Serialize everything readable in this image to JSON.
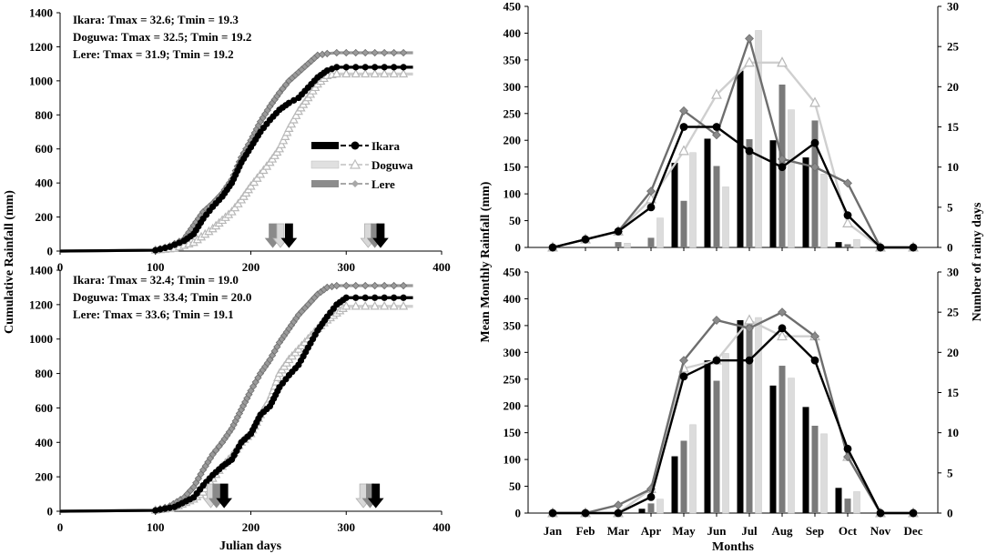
{
  "colors": {
    "ikara": "#000000",
    "doguwa": "#d0d0d0",
    "lere": "#808080",
    "axis": "#000000"
  },
  "icons": {
    "arrow": "down-arrow-icon"
  },
  "chart_data": [
    {
      "type": "line",
      "panel": "cumulative-top",
      "xlim": [
        0,
        400
      ],
      "ylim": [
        0,
        1400
      ],
      "xticks": [
        "0",
        "100",
        "200",
        "300",
        "400"
      ],
      "yticks": [
        "0",
        "200",
        "400",
        "600",
        "800",
        "1000",
        "1200",
        "1400"
      ],
      "xlabel": "",
      "ylabel": "",
      "annotations": [
        "Ikara: Tmax = 32.6; Tmin = 19.3",
        "Doguwa: Tmax = 32.5; Tmin = 19.2",
        "Lere: Tmax = 31.9; Tmin = 19.2"
      ],
      "legend": [
        "Ikara",
        "Doguwa",
        "Lere"
      ],
      "series": [
        {
          "name": "Ikara",
          "x": [
            0,
            100,
            115,
            130,
            140,
            150,
            160,
            170,
            180,
            190,
            200,
            210,
            220,
            230,
            240,
            250,
            260,
            270,
            280,
            290,
            300,
            320,
            340,
            370
          ],
          "y": [
            0,
            5,
            25,
            60,
            100,
            190,
            260,
            320,
            400,
            520,
            610,
            700,
            770,
            830,
            870,
            900,
            960,
            1020,
            1060,
            1080,
            1080,
            1080,
            1080,
            1080
          ]
        },
        {
          "name": "Doguwa",
          "x": [
            0,
            100,
            120,
            140,
            160,
            170,
            180,
            190,
            200,
            210,
            220,
            230,
            240,
            250,
            260,
            270,
            280,
            290,
            300,
            320,
            340,
            370
          ],
          "y": [
            0,
            5,
            15,
            50,
            130,
            180,
            230,
            300,
            380,
            450,
            520,
            600,
            720,
            820,
            900,
            980,
            1030,
            1040,
            1040,
            1040,
            1040,
            1040
          ]
        },
        {
          "name": "Lere",
          "x": [
            0,
            100,
            115,
            130,
            140,
            150,
            160,
            170,
            180,
            190,
            200,
            210,
            220,
            230,
            240,
            250,
            260,
            270,
            280,
            290,
            300,
            320,
            340,
            370
          ],
          "y": [
            0,
            5,
            30,
            70,
            150,
            230,
            280,
            340,
            420,
            550,
            650,
            760,
            850,
            930,
            1000,
            1050,
            1100,
            1150,
            1160,
            1165,
            1165,
            1165,
            1165,
            1165
          ]
        }
      ],
      "arrows": [
        {
          "name": "Lere",
          "x": 223
        },
        {
          "name": "Doguwa",
          "x": 231
        },
        {
          "name": "Ikara",
          "x": 240
        },
        {
          "name": "Doguwa",
          "x": 323
        },
        {
          "name": "Lere",
          "x": 330
        },
        {
          "name": "Ikara",
          "x": 336
        }
      ]
    },
    {
      "type": "line",
      "panel": "cumulative-bottom",
      "xlim": [
        0,
        400
      ],
      "ylim": [
        0,
        1400
      ],
      "xticks": [
        "0",
        "100",
        "200",
        "300",
        "400"
      ],
      "yticks": [
        "0",
        "200",
        "400",
        "600",
        "800",
        "1000",
        "1200",
        "1400"
      ],
      "xlabel": "Julian days",
      "ylabel": "Cumulative Rainfall (mm)",
      "annotations": [
        "Ikara: Tmax = 32.4; Tmin = 19.0",
        "Doguwa: Tmax = 33.4; Tmin = 20.0",
        "Lere: Tmax = 33.6; Tmin = 19.1"
      ],
      "series": [
        {
          "name": "Ikara",
          "x": [
            0,
            100,
            120,
            140,
            150,
            160,
            170,
            180,
            190,
            200,
            210,
            220,
            230,
            240,
            250,
            260,
            270,
            280,
            290,
            300,
            320,
            340,
            370
          ],
          "y": [
            0,
            5,
            25,
            80,
            150,
            210,
            260,
            300,
            400,
            450,
            560,
            610,
            720,
            790,
            850,
            950,
            1050,
            1130,
            1200,
            1240,
            1240,
            1240,
            1240
          ]
        },
        {
          "name": "Doguwa",
          "x": [
            0,
            100,
            120,
            140,
            150,
            160,
            170,
            180,
            190,
            200,
            210,
            220,
            230,
            240,
            250,
            260,
            270,
            280,
            290,
            300,
            320,
            340,
            370
          ],
          "y": [
            0,
            5,
            20,
            70,
            110,
            190,
            260,
            320,
            400,
            450,
            560,
            650,
            800,
            880,
            940,
            1000,
            1060,
            1110,
            1150,
            1190,
            1190,
            1190,
            1190
          ]
        },
        {
          "name": "Lere",
          "x": [
            0,
            100,
            115,
            130,
            140,
            150,
            160,
            170,
            180,
            190,
            200,
            210,
            220,
            230,
            240,
            250,
            260,
            270,
            280,
            290,
            300,
            320,
            340,
            370
          ],
          "y": [
            0,
            5,
            30,
            80,
            140,
            240,
            330,
            400,
            480,
            590,
            700,
            800,
            880,
            980,
            1060,
            1140,
            1200,
            1260,
            1300,
            1310,
            1310,
            1310,
            1310,
            1310
          ]
        }
      ],
      "arrows": [
        {
          "name": "Doguwa",
          "x": 158
        },
        {
          "name": "Lere",
          "x": 164
        },
        {
          "name": "Ikara",
          "x": 172
        },
        {
          "name": "Doguwa",
          "x": 318
        },
        {
          "name": "Lere",
          "x": 325
        },
        {
          "name": "Ikara",
          "x": 331
        }
      ]
    },
    {
      "type": "bar",
      "panel": "monthly-top",
      "categories": [
        "Jan",
        "Feb",
        "Mar",
        "Apr",
        "May",
        "Jun",
        "Jul",
        "Aug",
        "Sep",
        "Oct",
        "Nov",
        "Dec"
      ],
      "ylim": [
        0,
        450
      ],
      "y2lim": [
        0,
        30
      ],
      "yticks": [
        "0",
        "50",
        "100",
        "150",
        "200",
        "250",
        "300",
        "350",
        "400",
        "450"
      ],
      "y2ticks": [
        "0",
        "5",
        "10",
        "15",
        "20",
        "25",
        "30"
      ],
      "xlabel": "",
      "ylabel": "",
      "y2label": "",
      "series": [
        {
          "name": "Ikara",
          "values": [
            0,
            0,
            0,
            0,
            158,
            203,
            330,
            200,
            168,
            10,
            0,
            0
          ]
        },
        {
          "name": "Lere",
          "values": [
            0,
            0,
            10,
            18,
            87,
            152,
            202,
            304,
            237,
            6,
            0,
            0
          ]
        },
        {
          "name": "Doguwa",
          "values": [
            0,
            0,
            8,
            55,
            177,
            113,
            405,
            257,
            137,
            15,
            0,
            0
          ]
        }
      ],
      "rainy_days": [
        {
          "name": "Ikara",
          "values": [
            0,
            1,
            2,
            5,
            15,
            15,
            12,
            10,
            13,
            4,
            0,
            0
          ]
        },
        {
          "name": "Doguwa",
          "values": [
            0,
            1,
            2,
            6,
            12,
            19,
            23,
            23,
            18,
            3,
            0,
            0
          ]
        },
        {
          "name": "Lere",
          "values": [
            0,
            1,
            2,
            7,
            17,
            14,
            26,
            11,
            10,
            8,
            0,
            0
          ]
        }
      ]
    },
    {
      "type": "bar",
      "panel": "monthly-bottom",
      "categories": [
        "Jan",
        "Feb",
        "Mar",
        "Apr",
        "May",
        "Jun",
        "Jul",
        "Aug",
        "Sep",
        "Oct",
        "Nov",
        "Dec"
      ],
      "ylim": [
        0,
        450
      ],
      "y2lim": [
        0,
        30
      ],
      "yticks": [
        "0",
        "50",
        "100",
        "150",
        "200",
        "250",
        "300",
        "350",
        "400",
        "450"
      ],
      "y2ticks": [
        "0",
        "5",
        "10",
        "15",
        "20",
        "25",
        "30"
      ],
      "xlabel": "Months",
      "ylabel": "Mean Monthly Rainfall (mm)",
      "y2label": "Number of rainy days",
      "series": [
        {
          "name": "Ikara",
          "values": [
            0,
            0,
            0,
            8,
            106,
            285,
            360,
            238,
            198,
            47,
            0,
            0
          ]
        },
        {
          "name": "Lere",
          "values": [
            0,
            0,
            0,
            18,
            135,
            247,
            355,
            275,
            163,
            27,
            0,
            0
          ]
        },
        {
          "name": "Doguwa",
          "values": [
            0,
            0,
            0,
            26,
            165,
            298,
            365,
            252,
            148,
            40,
            0,
            0
          ]
        }
      ],
      "rainy_days": [
        {
          "name": "Ikara",
          "values": [
            0,
            0,
            0,
            2,
            17,
            19,
            19,
            23,
            19,
            8,
            0,
            0
          ]
        },
        {
          "name": "Doguwa",
          "values": [
            0,
            0,
            0,
            3,
            18,
            19,
            24,
            22,
            22,
            7,
            0,
            0
          ]
        },
        {
          "name": "Lere",
          "values": [
            0,
            0,
            1,
            3,
            19,
            24,
            23,
            25,
            22,
            7,
            0,
            0
          ]
        }
      ]
    }
  ]
}
